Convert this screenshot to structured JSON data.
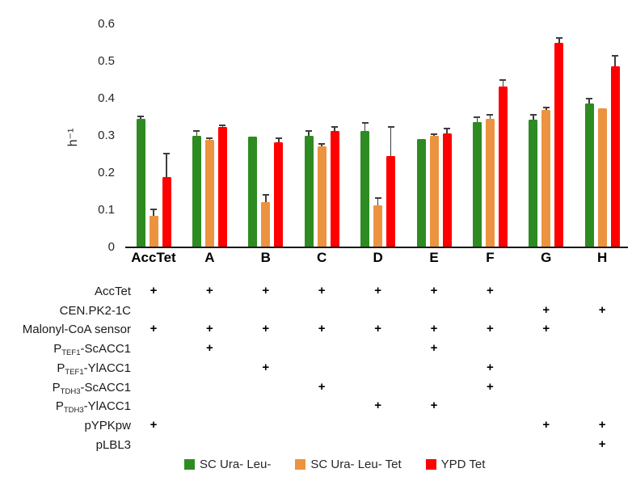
{
  "chart_data": {
    "type": "bar",
    "title": "",
    "ylabel": "h⁻¹",
    "xlabel": "",
    "ylim": [
      0,
      0.6
    ],
    "yticks": [
      0.6,
      0.5,
      0.4,
      0.3,
      0.2,
      0.1,
      0
    ],
    "ytick_labels": [
      "0.6",
      "0.5",
      "0.4",
      "0.3",
      "0.2",
      "0.1",
      "0"
    ],
    "grid": false,
    "legend_position": "bottom",
    "categories": [
      "AccTet",
      "A",
      "B",
      "C",
      "D",
      "E",
      "F",
      "G",
      "H"
    ],
    "series": [
      {
        "name": "SC Ura- Leu-",
        "color": "#2E8B22",
        "values": [
          0.345,
          0.3,
          0.298,
          0.301,
          0.312,
          0.291,
          0.336,
          0.343,
          0.388
        ],
        "errors_plus": [
          0.008,
          0.012,
          0,
          0.011,
          0.022,
          0,
          0.013,
          0.014,
          0.013
        ]
      },
      {
        "name": "SC Ura- Leu- Tet",
        "color": "#EC9340",
        "values": [
          0.085,
          0.289,
          0.122,
          0.272,
          0.113,
          0.301,
          0.345,
          0.37,
          0.374
        ],
        "errors_plus": [
          0.017,
          0.004,
          0.019,
          0.006,
          0.02,
          0.004,
          0.011,
          0.007,
          0
        ]
      },
      {
        "name": "YPD Tet",
        "color": "#FF0000",
        "values": [
          0.19,
          0.324,
          0.283,
          0.312,
          0.246,
          0.307,
          0.433,
          0.551,
          0.487
        ],
        "errors_plus": [
          0.063,
          0.004,
          0.011,
          0.011,
          0.078,
          0.013,
          0.016,
          0.011,
          0.028
        ]
      }
    ]
  },
  "table": {
    "plus_glyph": "+",
    "columns": [
      "AccTet",
      "A",
      "B",
      "C",
      "D",
      "E",
      "F",
      "G",
      "H"
    ],
    "rows": [
      {
        "pre": "AccTet",
        "sub": "",
        "post": "",
        "cells": [
          1,
          1,
          1,
          1,
          1,
          1,
          1,
          0,
          0
        ]
      },
      {
        "pre": "CEN.PK2-1C",
        "sub": "",
        "post": "",
        "cells": [
          0,
          0,
          0,
          0,
          0,
          0,
          0,
          1,
          1
        ]
      },
      {
        "pre": "Malonyl-CoA sensor",
        "sub": "",
        "post": "",
        "cells": [
          1,
          1,
          1,
          1,
          1,
          1,
          1,
          1,
          0
        ]
      },
      {
        "pre": "P",
        "sub": "TEF1",
        "post": "-ScACC1",
        "cells": [
          0,
          1,
          0,
          0,
          0,
          1,
          0,
          0,
          0
        ]
      },
      {
        "pre": "P",
        "sub": "TEF1",
        "post": "-YlACC1",
        "cells": [
          0,
          0,
          1,
          0,
          0,
          0,
          1,
          0,
          0
        ]
      },
      {
        "pre": "P",
        "sub": "TDH3",
        "post": "-ScACC1",
        "cells": [
          0,
          0,
          0,
          1,
          0,
          0,
          1,
          0,
          0
        ]
      },
      {
        "pre": "P",
        "sub": "TDH3",
        "post": "-YlACC1",
        "cells": [
          0,
          0,
          0,
          0,
          1,
          1,
          0,
          0,
          0
        ]
      },
      {
        "pre": "pYPKpw",
        "sub": "",
        "post": "",
        "cells": [
          1,
          0,
          0,
          0,
          0,
          0,
          0,
          1,
          1
        ]
      },
      {
        "pre": "pLBL3",
        "sub": "",
        "post": "",
        "cells": [
          0,
          0,
          0,
          0,
          0,
          0,
          0,
          0,
          1
        ]
      }
    ]
  },
  "legend": {
    "items": [
      {
        "label": "SC Ura- Leu-",
        "color": "#2E8B22"
      },
      {
        "label": "SC Ura- Leu- Tet",
        "color": "#EC9340"
      },
      {
        "label": "YPD Tet",
        "color": "#FF0000"
      }
    ]
  }
}
